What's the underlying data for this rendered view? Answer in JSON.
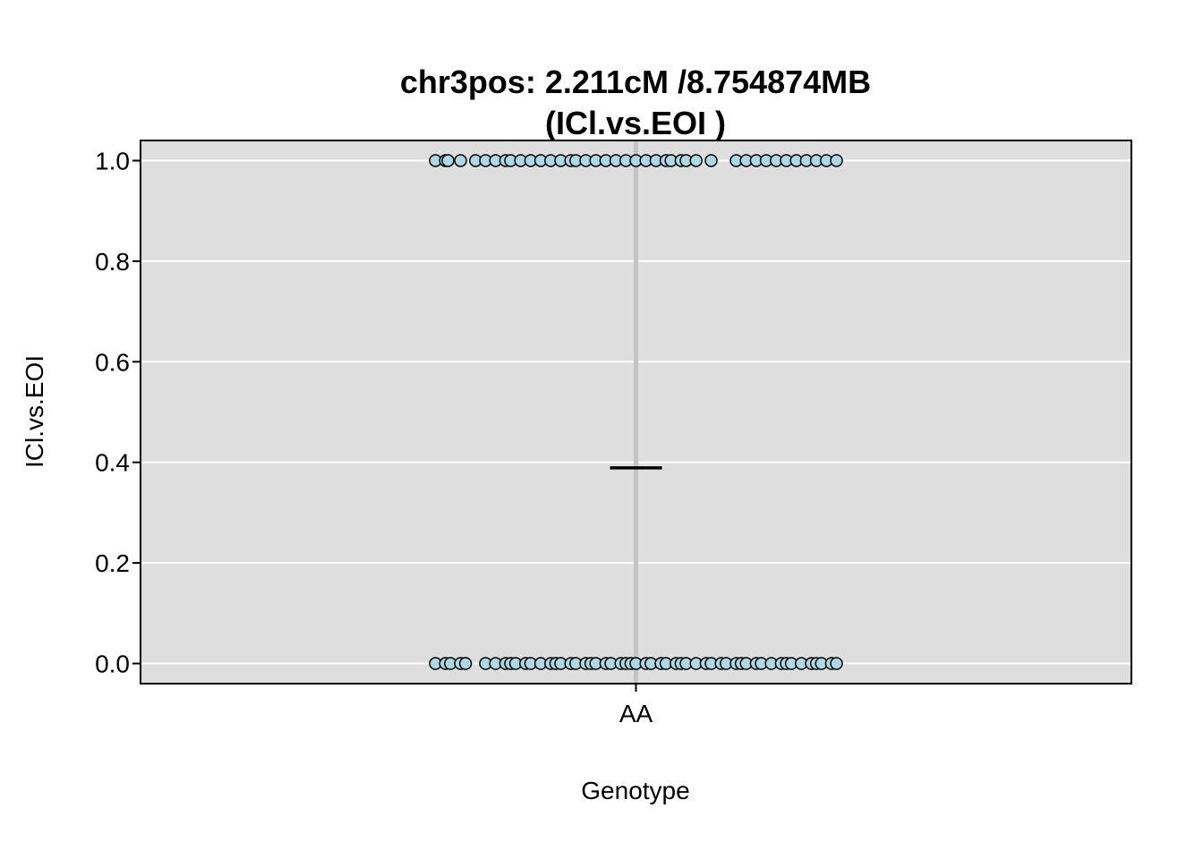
{
  "chart_data": {
    "type": "scatter",
    "title_line1": "chr3pos: 2.211cM /8.754874MB",
    "title_line2": "(ICl.vs.EOI )",
    "xlabel": "Genotype",
    "ylabel": "ICl.vs.EOI",
    "categories": [
      "AA"
    ],
    "ylim": [
      -0.04,
      1.04
    ],
    "yticks": [
      0.0,
      0.2,
      0.4,
      0.6,
      0.8,
      1.0
    ],
    "ytick_labels": [
      "0.0",
      "0.2",
      "0.4",
      "0.6",
      "0.8",
      "1.0"
    ],
    "mean_value": 0.389,
    "jitter_range": [
      -0.4,
      0.4
    ],
    "points_at_1": [
      -0.4,
      -0.38,
      -0.375,
      -0.35,
      -0.32,
      -0.3,
      -0.28,
      -0.26,
      -0.25,
      -0.23,
      -0.21,
      -0.19,
      -0.17,
      -0.15,
      -0.13,
      -0.12,
      -0.1,
      -0.08,
      -0.06,
      -0.04,
      -0.02,
      0.0,
      0.02,
      0.04,
      0.06,
      0.07,
      0.09,
      0.1,
      0.12,
      0.15,
      0.2,
      0.22,
      0.24,
      0.26,
      0.28,
      0.3,
      0.32,
      0.34,
      0.36,
      0.38,
      0.4
    ],
    "points_at_0": [
      -0.4,
      -0.38,
      -0.37,
      -0.35,
      -0.34,
      -0.3,
      -0.28,
      -0.26,
      -0.25,
      -0.24,
      -0.22,
      -0.21,
      -0.19,
      -0.17,
      -0.16,
      -0.15,
      -0.13,
      -0.12,
      -0.1,
      -0.09,
      -0.08,
      -0.06,
      -0.05,
      -0.03,
      -0.02,
      -0.01,
      0.0,
      0.02,
      0.03,
      0.05,
      0.06,
      0.08,
      0.09,
      0.1,
      0.12,
      0.14,
      0.15,
      0.17,
      0.18,
      0.2,
      0.21,
      0.22,
      0.24,
      0.25,
      0.27,
      0.29,
      0.3,
      0.31,
      0.33,
      0.35,
      0.36,
      0.37,
      0.39,
      0.4
    ],
    "colors": {
      "panel": "#dedede",
      "grid": "#ffffff",
      "point_fill": "#add8e6",
      "point_stroke": "#000000",
      "vline": "#c4c4c4",
      "mean": "#000000"
    },
    "grid": true,
    "legend": "none"
  }
}
